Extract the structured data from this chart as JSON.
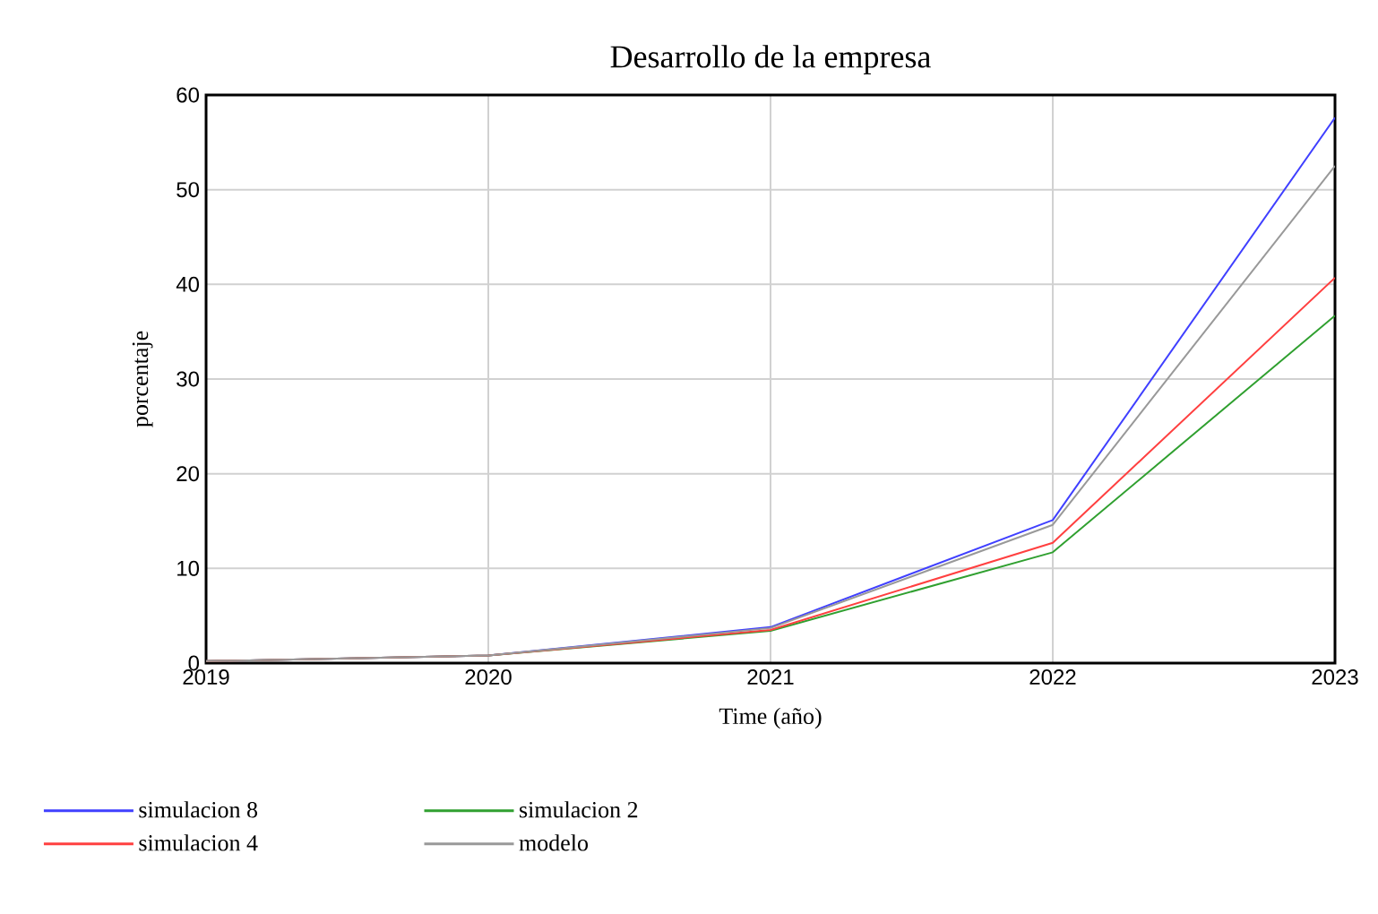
{
  "chart_data": {
    "type": "line",
    "title": "Desarrollo de la empresa",
    "xlabel": "Time (año)",
    "ylabel": "porcentaje",
    "x": [
      2019,
      2020,
      2021,
      2022,
      2023
    ],
    "series": [
      {
        "name": "simulacion 8",
        "color": "#4040ff",
        "values": [
          0.2,
          0.8,
          3.8,
          15.1,
          57.6
        ]
      },
      {
        "name": "simulacion 4",
        "color": "#ff4040",
        "values": [
          0.2,
          0.8,
          3.5,
          12.7,
          40.7
        ]
      },
      {
        "name": "simulacion 2",
        "color": "#30a030",
        "values": [
          0.2,
          0.8,
          3.4,
          11.7,
          36.7
        ]
      },
      {
        "name": "modelo",
        "color": "#999999",
        "values": [
          0.2,
          0.8,
          3.7,
          14.6,
          52.5
        ]
      }
    ],
    "xlim": [
      2019,
      2023
    ],
    "xticks": [
      2019,
      2020,
      2021,
      2022,
      2023
    ],
    "ylim": [
      0,
      60
    ],
    "yticks": [
      0,
      10,
      20,
      30,
      40,
      50,
      60
    ],
    "grid": true,
    "legend": "bottom",
    "marker": "none",
    "line_style": "solid"
  }
}
